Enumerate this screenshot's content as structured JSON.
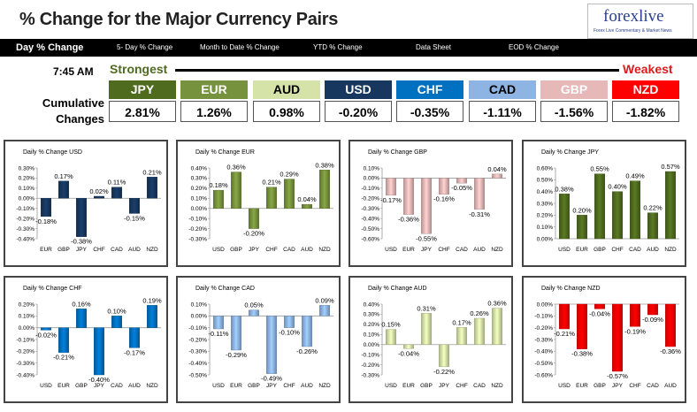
{
  "header": {
    "title": "% Change for the Major Currency Pairs",
    "logo_main": "forexlive",
    "logo_sub": "Forex Live Commentary & Market News"
  },
  "nav": {
    "tabs": [
      {
        "label": "Day % Change",
        "active": true
      },
      {
        "label": "5- Day % Change",
        "active": false
      },
      {
        "label": "Month to Date % Change",
        "active": false
      },
      {
        "label": "YTD % Change",
        "active": false
      },
      {
        "label": "Data Sheet",
        "active": false
      },
      {
        "label": "EOD % Change",
        "active": false
      }
    ]
  },
  "ranking": {
    "time": "7:45 AM",
    "strongest_label": "Strongest",
    "weakest_label": "Weakest",
    "cumulative_label": "Cumulative Changes",
    "currencies": [
      {
        "code": "JPY",
        "value": "2.81%",
        "bg": "#4f6b1e",
        "fg": "#ffffff"
      },
      {
        "code": "EUR",
        "value": "1.26%",
        "bg": "#76923c",
        "fg": "#ffffff"
      },
      {
        "code": "AUD",
        "value": "0.98%",
        "bg": "#d6e3a8",
        "fg": "#000000"
      },
      {
        "code": "USD",
        "value": "-0.20%",
        "bg": "#17375e",
        "fg": "#ffffff"
      },
      {
        "code": "CHF",
        "value": "-0.35%",
        "bg": "#0070c0",
        "fg": "#ffffff"
      },
      {
        "code": "CAD",
        "value": "-1.11%",
        "bg": "#8db4e2",
        "fg": "#000000"
      },
      {
        "code": "GBP",
        "value": "-1.56%",
        "bg": "#e6b8b7",
        "fg": "#ffffff"
      },
      {
        "code": "NZD",
        "value": "-1.82%",
        "bg": "#ff0000",
        "fg": "#ffffff"
      }
    ]
  },
  "chart_data": [
    {
      "type": "bar",
      "title": "Daily % Change USD",
      "color": "#17375e",
      "categories": [
        "EUR",
        "GBP",
        "JPY",
        "CHF",
        "CAD",
        "AUD",
        "NZD"
      ],
      "values": [
        -0.18,
        0.17,
        -0.38,
        0.02,
        0.11,
        -0.15,
        0.21
      ],
      "labels": [
        "-0.18%",
        "0.17%",
        "-0.38%",
        "0.02%",
        "0.11%",
        "-0.15%",
        "0.21%"
      ],
      "yticks": [
        "0.30%",
        "0.20%",
        "0.10%",
        "0.00%",
        "-0.10%",
        "-0.20%",
        "-0.30%",
        "-0.40%"
      ],
      "ylim": [
        -0.4,
        0.3
      ]
    },
    {
      "type": "bar",
      "title": "Daily % Change EUR",
      "color": "#76923c",
      "categories": [
        "USD",
        "GBP",
        "JPY",
        "CHF",
        "CAD",
        "AUD",
        "NZD"
      ],
      "values": [
        0.18,
        0.36,
        -0.2,
        0.21,
        0.29,
        0.04,
        0.38
      ],
      "labels": [
        "0.18%",
        "0.36%",
        "-0.20%",
        "0.21%",
        "0.29%",
        "0.04%",
        "0.38%"
      ],
      "yticks": [
        "0.40%",
        "0.30%",
        "0.20%",
        "0.10%",
        "0.00%",
        "-0.10%",
        "-0.20%",
        "-0.30%"
      ],
      "ylim": [
        -0.3,
        0.4
      ]
    },
    {
      "type": "bar",
      "title": "Daily % Change GBP",
      "color": "#e6b8b7",
      "categories": [
        "USD",
        "EUR",
        "JPY",
        "CHF",
        "CAD",
        "AUD",
        "NZD"
      ],
      "values": [
        -0.17,
        -0.36,
        -0.55,
        -0.16,
        -0.05,
        -0.31,
        0.04
      ],
      "labels": [
        "-0.17%",
        "-0.36%",
        "-0.55%",
        "-0.16%",
        "-0.05%",
        "-0.31%",
        "0.04%"
      ],
      "yticks": [
        "0.10%",
        "0.00%",
        "-0.10%",
        "-0.20%",
        "-0.30%",
        "-0.40%",
        "-0.50%",
        "-0.60%"
      ],
      "ylim": [
        -0.6,
        0.1
      ]
    },
    {
      "type": "bar",
      "title": "Daily % Change JPY",
      "color": "#4f6b1e",
      "categories": [
        "USD",
        "EUR",
        "GBP",
        "CHF",
        "CAD",
        "AUD",
        "NZD"
      ],
      "values": [
        0.38,
        0.2,
        0.55,
        0.4,
        0.49,
        0.22,
        0.57
      ],
      "labels": [
        "0.38%",
        "0.20%",
        "0.55%",
        "0.40%",
        "0.49%",
        "0.22%",
        "0.57%"
      ],
      "yticks": [
        "0.60%",
        "0.50%",
        "0.40%",
        "0.30%",
        "0.20%",
        "0.10%",
        "0.00%"
      ],
      "ylim": [
        0,
        0.6
      ]
    },
    {
      "type": "bar",
      "title": "Daily % Change CHF",
      "color": "#0070c0",
      "categories": [
        "USD",
        "EUR",
        "GBP",
        "JPY",
        "CAD",
        "AUD",
        "NZD"
      ],
      "values": [
        -0.02,
        -0.21,
        0.16,
        -0.4,
        0.1,
        -0.17,
        0.19
      ],
      "labels": [
        "-0.02%",
        "-0.21%",
        "0.16%",
        "-0.40%",
        "0.10%",
        "-0.17%",
        "0.19%"
      ],
      "yticks": [
        "0.20%",
        "0.10%",
        "0.00%",
        "-0.10%",
        "-0.20%",
        "-0.30%",
        "-0.40%"
      ],
      "ylim": [
        -0.4,
        0.2
      ]
    },
    {
      "type": "bar",
      "title": "Daily % Change CAD",
      "color": "#8db4e2",
      "categories": [
        "USD",
        "EUR",
        "GBP",
        "JPY",
        "CHF",
        "AUD",
        "NZD"
      ],
      "values": [
        -0.11,
        -0.29,
        0.05,
        -0.49,
        -0.1,
        -0.26,
        0.09
      ],
      "labels": [
        "-0.11%",
        "-0.29%",
        "0.05%",
        "-0.49%",
        "-0.10%",
        "-0.26%",
        "0.09%"
      ],
      "yticks": [
        "0.10%",
        "0.00%",
        "-0.10%",
        "-0.20%",
        "-0.30%",
        "-0.40%",
        "-0.50%"
      ],
      "ylim": [
        -0.5,
        0.1
      ]
    },
    {
      "type": "bar",
      "title": "Daily % Change AUD",
      "color": "#d6e3a8",
      "categories": [
        "USD",
        "EUR",
        "GBP",
        "JPY",
        "CHF",
        "CAD",
        "NZD"
      ],
      "values": [
        0.15,
        -0.04,
        0.31,
        -0.22,
        0.17,
        0.26,
        0.36
      ],
      "labels": [
        "0.15%",
        "-0.04%",
        "0.31%",
        "-0.22%",
        "0.17%",
        "0.26%",
        "0.36%"
      ],
      "yticks": [
        "0.40%",
        "0.30%",
        "0.20%",
        "0.10%",
        "0.00%",
        "-0.10%",
        "-0.20%",
        "-0.30%"
      ],
      "ylim": [
        -0.3,
        0.4
      ]
    },
    {
      "type": "bar",
      "title": "Daily % Change NZD",
      "color": "#ff0000",
      "categories": [
        "USD",
        "EUR",
        "GBP",
        "JPY",
        "CHF",
        "CAD",
        "AUD"
      ],
      "values": [
        -0.21,
        -0.38,
        -0.04,
        -0.57,
        -0.19,
        -0.09,
        -0.36
      ],
      "labels": [
        "-0.21%",
        "-0.38%",
        "-0.04%",
        "-0.57%",
        "-0.19%",
        "-0.09%",
        "-0.36%"
      ],
      "yticks": [
        "0.00%",
        "-0.10%",
        "-0.20%",
        "-0.30%",
        "-0.40%",
        "-0.50%",
        "-0.60%"
      ],
      "ylim": [
        -0.6,
        0
      ]
    }
  ]
}
